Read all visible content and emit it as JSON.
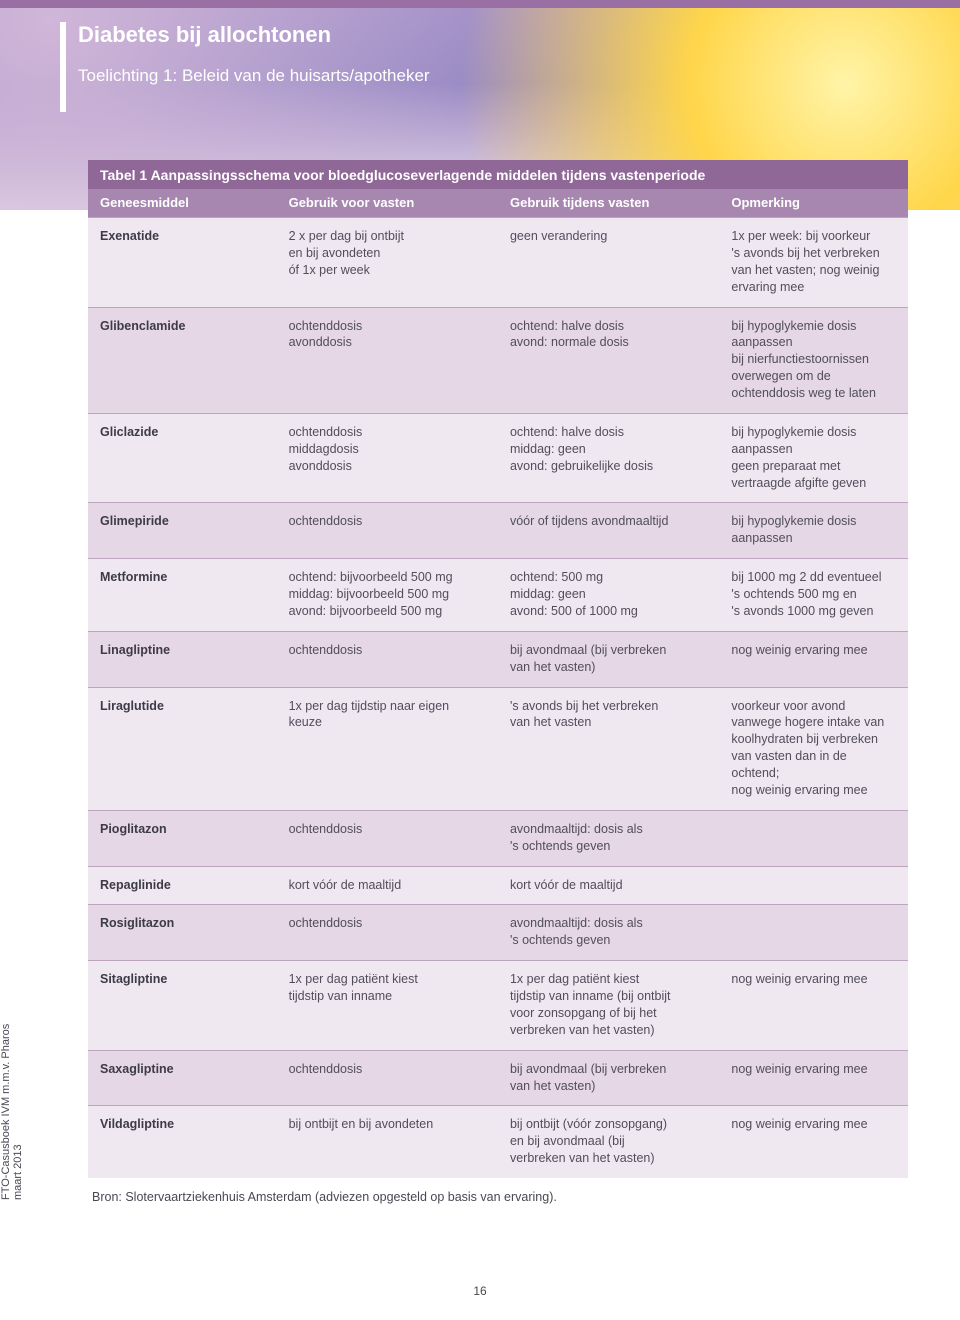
{
  "header": {
    "title": "Diabetes bij allochtonen",
    "subtitle": "Toelichting 1: Beleid van de huisarts/apotheker",
    "title_fontsize": 22,
    "subtitle_fontsize": 17
  },
  "table": {
    "caption": "Tabel 1 Aanpassingsschema voor bloedglucoseverlagende middelen tijdens vastenperiode",
    "caption_bg": "#906897",
    "caption_fontsize": 14,
    "header_bg": "#a787b0",
    "header_fontsize": 13,
    "border_color": "#bda5c0",
    "row_colors": {
      "odd": "#f0e8f1",
      "even": "#e5d7e6"
    },
    "columns": [
      "Geneesmiddel",
      "Gebruik voor vasten",
      "Gebruik tijdens vasten",
      "Opmerking"
    ],
    "col_widths_pct": [
      23,
      27,
      27,
      23
    ],
    "body_fontsize": 12.5,
    "rows": [
      {
        "c1": "Exenatide",
        "c2": "2 x per dag bij ontbijt\nen bij avondeten\nóf 1x per week",
        "c3": "geen verandering",
        "c4": "1x per week: bij voorkeur\n's avonds bij het verbreken\nvan het vasten; nog weinig\nervaring mee"
      },
      {
        "c1": "Glibenclamide",
        "c2": "ochtenddosis\navonddosis",
        "c3": "ochtend: halve dosis\navond: normale dosis",
        "c4": "bij hypoglykemie dosis\naanpassen\nbij nierfunctiestoornissen\noverwegen om de\nochtenddosis weg te laten"
      },
      {
        "c1": "Gliclazide",
        "c2": "ochtenddosis\nmiddagdosis\navonddosis",
        "c3": "ochtend: halve dosis\nmiddag: geen\navond: gebruikelijke dosis",
        "c4": "bij hypoglykemie dosis\naanpassen\ngeen preparaat met\nvertraagde afgifte geven"
      },
      {
        "c1": "Glimepiride",
        "c2": "ochtenddosis",
        "c3": "vóór of tijdens avondmaaltijd",
        "c4": "bij hypoglykemie dosis\naanpassen"
      },
      {
        "c1": "Metformine",
        "c2": "ochtend: bijvoorbeeld 500 mg\nmiddag: bijvoorbeeld 500 mg\navond: bijvoorbeeld 500 mg",
        "c3": "ochtend: 500 mg\nmiddag: geen\navond: 500 of 1000 mg",
        "c4": "bij 1000 mg 2 dd eventueel\n's ochtends 500 mg en\n's avonds 1000 mg geven"
      },
      {
        "c1": "Linagliptine",
        "c2": "ochtenddosis",
        "c3": "bij avondmaal (bij verbreken\nvan het vasten)",
        "c4": "nog weinig ervaring mee"
      },
      {
        "c1": "Liraglutide",
        "c2": "1x per dag tijdstip naar eigen\nkeuze",
        "c3": "'s avonds bij het verbreken\nvan het vasten",
        "c4": "voorkeur voor avond\nvanwege hogere intake van\nkoolhydraten bij verbreken\nvan vasten dan in de ochtend;\nnog weinig ervaring mee"
      },
      {
        "c1": "Pioglitazon",
        "c2": "ochtenddosis",
        "c3": "avondmaaltijd: dosis als\n's ochtends geven",
        "c4": ""
      },
      {
        "c1": "Repaglinide",
        "c2": "kort vóór de maaltijd",
        "c3": "kort vóór de maaltijd",
        "c4": ""
      },
      {
        "c1": "Rosiglitazon",
        "c2": "ochtenddosis",
        "c3": "avondmaaltijd: dosis als\n's ochtends geven",
        "c4": ""
      },
      {
        "c1": "Sitagliptine",
        "c2": "1x per dag patiënt kiest\ntijdstip van inname",
        "c3": "1x per dag patiënt kiest\ntijdstip van inname (bij ontbijt\nvoor zonsopgang of bij het\nverbreken van het vasten)",
        "c4": "nog weinig ervaring mee"
      },
      {
        "c1": "Saxagliptine",
        "c2": "ochtenddosis",
        "c3": "bij avondmaal (bij verbreken\nvan het  vasten)",
        "c4": "nog weinig ervaring mee"
      },
      {
        "c1": "Vildagliptine",
        "c2": "bij ontbijt en bij avondeten",
        "c3": "bij ontbijt (vóór zonsopgang)\nen bij avondmaal (bij\nverbreken van het vasten)",
        "c4": "nog weinig ervaring mee"
      }
    ],
    "source": "Bron: Slotervaartziekenhuis Amsterdam (adviezen opgesteld op basis van ervaring)."
  },
  "footer": {
    "page_number": "16",
    "side_text": "FTO-Casusboek IVM m.m.v. Pharos\nmaart 2013"
  },
  "colors": {
    "page_bg": "#ffffff",
    "top_accent": "#9a6fa3",
    "text": "#514e5a",
    "heading_text": "#ffffff"
  }
}
